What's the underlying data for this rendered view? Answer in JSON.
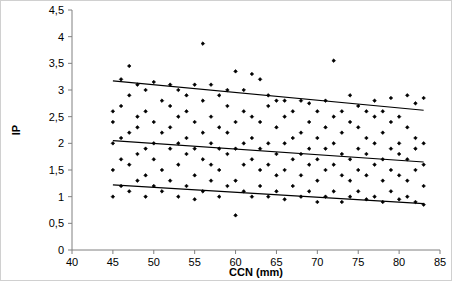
{
  "chart_data": {
    "type": "scatter",
    "x_label": "CCN (mm)",
    "y_label": "IP",
    "xlim": [
      40,
      85
    ],
    "xticks": [
      40,
      45,
      50,
      55,
      60,
      65,
      70,
      75,
      80,
      85
    ],
    "ylim": [
      0,
      4.5
    ],
    "yticks": [
      0,
      {
        "value": 0.5,
        "label": "0,5"
      },
      1,
      {
        "value": 1.5,
        "label": "1,5"
      },
      2,
      {
        "value": 2.5,
        "label": "2,5"
      },
      3,
      {
        "value": 3.5,
        "label": "3,5"
      },
      4,
      {
        "value": 4.5,
        "label": "4,5"
      }
    ],
    "grid": false,
    "series": [
      {
        "type": "scatter",
        "marker": "diamond",
        "color": "#000000",
        "x": [
          45,
          45,
          45,
          45,
          45,
          46,
          46,
          46,
          46,
          46,
          47,
          47,
          47,
          47,
          47,
          48,
          48,
          48,
          48,
          48,
          49,
          49,
          49,
          49,
          49,
          50,
          50,
          50,
          50,
          50,
          51,
          51,
          51,
          51,
          52,
          52,
          52,
          52,
          52,
          53,
          53,
          53,
          53,
          53,
          54,
          54,
          54,
          54,
          54,
          55,
          55,
          55,
          55,
          55,
          56,
          56,
          56,
          56,
          56,
          57,
          57,
          57,
          57,
          57,
          58,
          58,
          58,
          58,
          58,
          59,
          59,
          59,
          59,
          59,
          60,
          60,
          60,
          60,
          60,
          61,
          61,
          61,
          61,
          61,
          62,
          62,
          62,
          62,
          62,
          63,
          63,
          63,
          63,
          63,
          64,
          64,
          64,
          64,
          64,
          65,
          65,
          65,
          65,
          65,
          66,
          66,
          66,
          66,
          66,
          67,
          67,
          67,
          67,
          68,
          68,
          68,
          68,
          68,
          69,
          69,
          69,
          69,
          69,
          70,
          70,
          70,
          70,
          70,
          71,
          71,
          71,
          71,
          71,
          72,
          72,
          72,
          72,
          72,
          73,
          73,
          73,
          73,
          73,
          74,
          74,
          74,
          74,
          74,
          75,
          75,
          75,
          75,
          75,
          76,
          76,
          76,
          76,
          76,
          77,
          77,
          77,
          77,
          77,
          78,
          78,
          78,
          78,
          78,
          79,
          79,
          79,
          79,
          79,
          80,
          80,
          80,
          80,
          80,
          81,
          81,
          81,
          81,
          81,
          82,
          82,
          82,
          82,
          82,
          83,
          83,
          83,
          83,
          83
        ],
        "values": [
          1.0,
          1.5,
          2.0,
          2.4,
          2.6,
          1.2,
          1.7,
          2.1,
          2.7,
          3.2,
          1.1,
          1.6,
          2.2,
          2.9,
          3.45,
          1.3,
          1.8,
          2.3,
          2.5,
          3.1,
          1.0,
          1.4,
          1.9,
          2.6,
          3.0,
          1.2,
          1.7,
          2.0,
          2.4,
          3.15,
          1.1,
          1.5,
          2.2,
          2.8,
          1.3,
          1.9,
          2.3,
          2.7,
          3.1,
          1.0,
          1.6,
          2.0,
          2.5,
          3.0,
          1.2,
          1.8,
          2.1,
          2.6,
          2.9,
          0.95,
          1.4,
          1.9,
          2.4,
          3.1,
          1.1,
          1.7,
          2.2,
          2.8,
          3.87,
          1.3,
          1.6,
          2.0,
          2.5,
          3.1,
          1.0,
          1.5,
          1.9,
          2.3,
          2.9,
          1.2,
          1.8,
          2.2,
          2.7,
          3.0,
          0.65,
          1.3,
          1.9,
          2.4,
          3.35,
          1.1,
          1.6,
          2.0,
          2.6,
          3.0,
          1.0,
          1.7,
          2.1,
          2.5,
          3.3,
          1.2,
          1.5,
          1.9,
          2.4,
          3.2,
          1.0,
          1.6,
          2.0,
          2.7,
          2.9,
          1.1,
          1.4,
          1.8,
          2.3,
          2.8,
          0.95,
          1.5,
          2.0,
          2.5,
          2.8,
          1.2,
          1.7,
          2.1,
          2.6,
          1.0,
          1.4,
          1.8,
          2.2,
          2.8,
          1.1,
          1.6,
          1.9,
          2.4,
          2.75,
          0.9,
          1.3,
          1.7,
          2.1,
          2.6,
          1.0,
          1.5,
          1.9,
          2.3,
          2.8,
          1.1,
          1.6,
          2.0,
          2.5,
          3.55,
          0.9,
          1.4,
          1.8,
          2.2,
          2.6,
          1.0,
          1.3,
          1.7,
          2.4,
          2.9,
          1.1,
          1.5,
          1.9,
          2.3,
          2.7,
          0.95,
          1.4,
          1.8,
          2.1,
          2.6,
          1.0,
          1.6,
          2.0,
          2.5,
          2.8,
          0.9,
          1.3,
          1.7,
          2.2,
          2.6,
          1.1,
          1.5,
          1.9,
          2.4,
          2.85,
          0.95,
          1.4,
          1.8,
          2.0,
          2.5,
          1.0,
          1.3,
          1.7,
          2.3,
          2.9,
          0.9,
          1.5,
          1.9,
          2.1,
          2.75,
          0.85,
          1.2,
          1.6,
          2.0,
          2.85
        ]
      },
      {
        "type": "line",
        "color": "#000000",
        "x": [
          45,
          83
        ],
        "values": [
          3.17,
          2.62
        ]
      },
      {
        "type": "line",
        "color": "#000000",
        "x": [
          45,
          83
        ],
        "values": [
          2.05,
          1.65
        ]
      },
      {
        "type": "line",
        "color": "#000000",
        "x": [
          45,
          83
        ],
        "values": [
          1.22,
          0.87
        ]
      }
    ]
  }
}
